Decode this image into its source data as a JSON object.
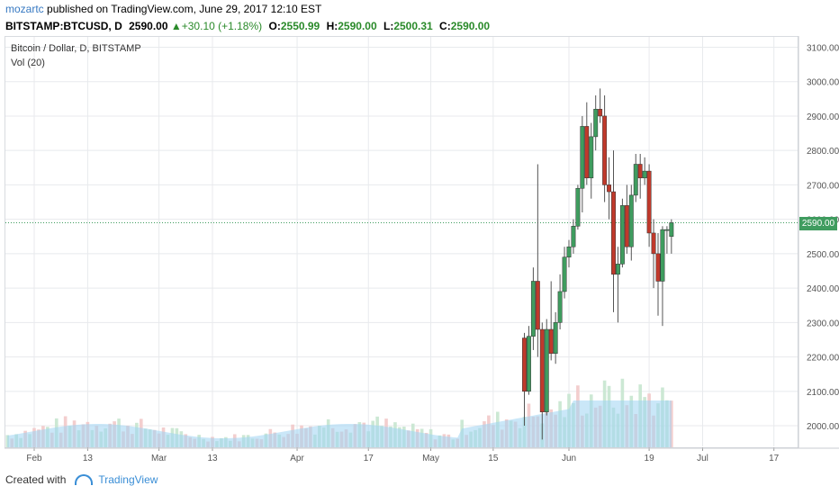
{
  "header": {
    "author": "mozartc",
    "published_text": "published on TradingView.com, June 29, 2017 12:10 EST",
    "symbol": "BITSTAMP:BTCUSD, D",
    "last": "2590.00",
    "change": "+30.10 (+1.18%)",
    "open_label": "O:",
    "open": "2550.99",
    "high_label": "H:",
    "high": "2590.00",
    "low_label": "L:",
    "low": "2500.31",
    "close_label": "C:",
    "close": "2590.00"
  },
  "legend": {
    "title": "Bitcoin / Dollar, D, BITSTAMP",
    "volume": "Vol (20)"
  },
  "footer": {
    "created_with": "Created with",
    "brand": "TradingView"
  },
  "colors": {
    "up": "#3f9c5f",
    "down": "#c0392b",
    "vol_up": "#c6e5cf",
    "vol_down": "#f2c9c9",
    "vol_area": "#9fd3f2",
    "grid": "#e8eaed"
  },
  "chart_data": {
    "type": "candlestick",
    "title": "Bitcoin / Dollar, D, BITSTAMP",
    "y_ticks": [
      "3100.00",
      "3000.00",
      "2900.00",
      "2800.00",
      "2700.00",
      "2600.00",
      "2500.00",
      "2400.00",
      "2300.00",
      "2200.00",
      "2100.00",
      "2000.00"
    ],
    "y_range": [
      1940,
      3130
    ],
    "x_ticks": [
      {
        "label": "Feb",
        "day": 0
      },
      {
        "label": "13",
        "day": 12
      },
      {
        "label": "Mar",
        "day": 28
      },
      {
        "label": "13",
        "day": 40
      },
      {
        "label": "Apr",
        "day": 59
      },
      {
        "label": "17",
        "day": 75
      },
      {
        "label": "May",
        "day": 89
      },
      {
        "label": "15",
        "day": 103
      },
      {
        "label": "Jun",
        "day": 120
      },
      {
        "label": "19",
        "day": 138
      },
      {
        "label": "Jul",
        "day": 150
      },
      {
        "label": "17",
        "day": 166
      }
    ],
    "last_price": "2590.00",
    "candles": [
      {
        "day": 110,
        "o": 2255,
        "h": 2270,
        "l": 2000,
        "c": 2100
      },
      {
        "day": 111,
        "o": 2100,
        "h": 2290,
        "l": 2090,
        "c": 2260
      },
      {
        "day": 112,
        "o": 2260,
        "h": 2460,
        "l": 2220,
        "c": 2420
      },
      {
        "day": 113,
        "o": 2420,
        "h": 2760,
        "l": 2200,
        "c": 2280
      },
      {
        "day": 114,
        "o": 2280,
        "h": 2300,
        "l": 1960,
        "c": 2040
      },
      {
        "day": 115,
        "o": 2040,
        "h": 2310,
        "l": 2030,
        "c": 2280
      },
      {
        "day": 116,
        "o": 2280,
        "h": 2420,
        "l": 2190,
        "c": 2210
      },
      {
        "day": 117,
        "o": 2210,
        "h": 2330,
        "l": 2180,
        "c": 2300
      },
      {
        "day": 118,
        "o": 2300,
        "h": 2440,
        "l": 2280,
        "c": 2390
      },
      {
        "day": 119,
        "o": 2390,
        "h": 2520,
        "l": 2370,
        "c": 2490
      },
      {
        "day": 120,
        "o": 2490,
        "h": 2540,
        "l": 2460,
        "c": 2520
      },
      {
        "day": 121,
        "o": 2520,
        "h": 2600,
        "l": 2500,
        "c": 2580
      },
      {
        "day": 122,
        "o": 2580,
        "h": 2700,
        "l": 2570,
        "c": 2690
      },
      {
        "day": 123,
        "o": 2690,
        "h": 2900,
        "l": 2620,
        "c": 2870
      },
      {
        "day": 124,
        "o": 2870,
        "h": 2940,
        "l": 2700,
        "c": 2720
      },
      {
        "day": 125,
        "o": 2720,
        "h": 2880,
        "l": 2660,
        "c": 2840
      },
      {
        "day": 126,
        "o": 2840,
        "h": 2960,
        "l": 2800,
        "c": 2920
      },
      {
        "day": 127,
        "o": 2920,
        "h": 2980,
        "l": 2880,
        "c": 2900
      },
      {
        "day": 128,
        "o": 2900,
        "h": 2960,
        "l": 2650,
        "c": 2700
      },
      {
        "day": 129,
        "o": 2700,
        "h": 2780,
        "l": 2600,
        "c": 2680
      },
      {
        "day": 130,
        "o": 2680,
        "h": 2800,
        "l": 2330,
        "c": 2440
      },
      {
        "day": 131,
        "o": 2440,
        "h": 2520,
        "l": 2300,
        "c": 2470
      },
      {
        "day": 132,
        "o": 2470,
        "h": 2660,
        "l": 2460,
        "c": 2640
      },
      {
        "day": 133,
        "o": 2640,
        "h": 2700,
        "l": 2500,
        "c": 2520
      },
      {
        "day": 134,
        "o": 2520,
        "h": 2700,
        "l": 2480,
        "c": 2670
      },
      {
        "day": 135,
        "o": 2670,
        "h": 2790,
        "l": 2650,
        "c": 2760
      },
      {
        "day": 136,
        "o": 2760,
        "h": 2790,
        "l": 2660,
        "c": 2720
      },
      {
        "day": 137,
        "o": 2720,
        "h": 2780,
        "l": 2700,
        "c": 2740
      },
      {
        "day": 138,
        "o": 2740,
        "h": 2760,
        "l": 2520,
        "c": 2560
      },
      {
        "day": 139,
        "o": 2560,
        "h": 2600,
        "l": 2400,
        "c": 2500
      },
      {
        "day": 140,
        "o": 2500,
        "h": 2560,
        "l": 2320,
        "c": 2420
      },
      {
        "day": 141,
        "o": 2420,
        "h": 2580,
        "l": 2290,
        "c": 2570
      },
      {
        "day": 142,
        "o": 2570,
        "h": 2580,
        "l": 2500,
        "c": 2570
      },
      {
        "day": 143,
        "o": 2550,
        "h": 2600,
        "l": 2500,
        "c": 2590
      }
    ],
    "volume_note": "Vol (20)"
  }
}
